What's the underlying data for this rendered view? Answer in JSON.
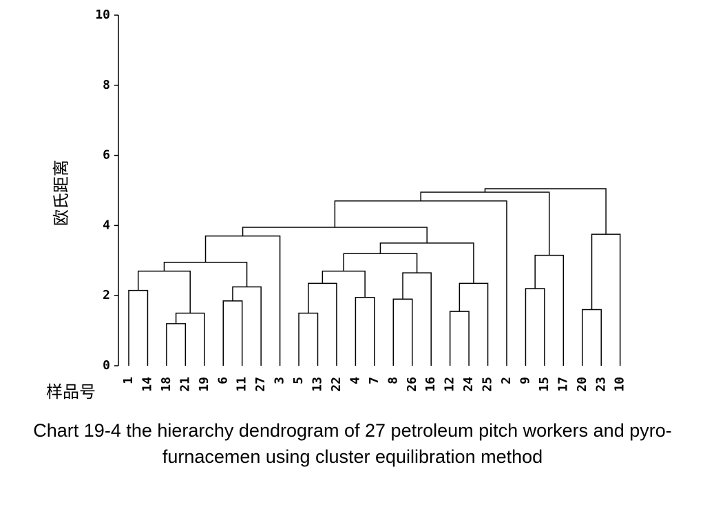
{
  "chart_data": {
    "type": "dendrogram",
    "ylabel": "欧氏距离",
    "xlabel": "样品号",
    "ylim": [
      0,
      10
    ],
    "yticks": [
      0,
      2,
      4,
      6,
      8,
      10
    ],
    "leaves": [
      "1",
      "14",
      "18",
      "21",
      "19",
      "6",
      "11",
      "27",
      "3",
      "5",
      "13",
      "22",
      "4",
      "7",
      "8",
      "26",
      "16",
      "12",
      "24",
      "25",
      "2",
      "9",
      "15",
      "17",
      "20",
      "23",
      "10"
    ],
    "merges": [
      {
        "id": "m_18_21",
        "children": [
          "18",
          "21"
        ],
        "height": 1.2
      },
      {
        "id": "m_18_21_19",
        "children": [
          "m_18_21",
          "19"
        ],
        "height": 1.5
      },
      {
        "id": "m_1_14",
        "children": [
          "1",
          "14"
        ],
        "height": 2.15
      },
      {
        "id": "m_1_19",
        "children": [
          "m_1_14",
          "m_18_21_19"
        ],
        "height": 2.7
      },
      {
        "id": "m_6_11",
        "children": [
          "6",
          "11"
        ],
        "height": 1.85
      },
      {
        "id": "m_6_27",
        "children": [
          "m_6_11",
          "27"
        ],
        "height": 2.25
      },
      {
        "id": "m_1_27",
        "children": [
          "m_1_19",
          "m_6_27"
        ],
        "height": 2.95
      },
      {
        "id": "m_1_3",
        "children": [
          "m_1_27",
          "3"
        ],
        "height": 3.7
      },
      {
        "id": "m_5_13",
        "children": [
          "5",
          "13"
        ],
        "height": 1.5
      },
      {
        "id": "m_5_22",
        "children": [
          "m_5_13",
          "22"
        ],
        "height": 2.35
      },
      {
        "id": "m_4_7",
        "children": [
          "4",
          "7"
        ],
        "height": 1.95
      },
      {
        "id": "m_5_7",
        "children": [
          "m_5_22",
          "m_4_7"
        ],
        "height": 2.7
      },
      {
        "id": "m_8_26",
        "children": [
          "8",
          "26"
        ],
        "height": 1.9
      },
      {
        "id": "m_8_16",
        "children": [
          "m_8_26",
          "16"
        ],
        "height": 2.65
      },
      {
        "id": "m_5_16",
        "children": [
          "m_5_7",
          "m_8_16"
        ],
        "height": 3.2
      },
      {
        "id": "m_12_24",
        "children": [
          "12",
          "24"
        ],
        "height": 1.55
      },
      {
        "id": "m_12_25",
        "children": [
          "m_12_24",
          "25"
        ],
        "height": 2.35
      },
      {
        "id": "m_5_25",
        "children": [
          "m_5_16",
          "m_12_25"
        ],
        "height": 3.5
      },
      {
        "id": "m_1_25",
        "children": [
          "m_1_3",
          "m_5_25"
        ],
        "height": 3.95
      },
      {
        "id": "m_1_2",
        "children": [
          "m_1_25",
          "2"
        ],
        "height": 4.7
      },
      {
        "id": "m_9_15",
        "children": [
          "9",
          "15"
        ],
        "height": 2.2
      },
      {
        "id": "m_9_17",
        "children": [
          "m_9_15",
          "17"
        ],
        "height": 3.15
      },
      {
        "id": "m_1_17",
        "children": [
          "m_1_2",
          "m_9_17"
        ],
        "height": 4.95
      },
      {
        "id": "m_20_23",
        "children": [
          "20",
          "23"
        ],
        "height": 1.6
      },
      {
        "id": "m_20_10",
        "children": [
          "m_20_23",
          "10"
        ],
        "height": 3.75
      },
      {
        "id": "m_all",
        "children": [
          "m_1_17",
          "m_20_10"
        ],
        "height": 5.05
      }
    ]
  },
  "caption": "Chart 19-4  the hierarchy dendrogram of 27 petroleum pitch workers and pyro-furnacemen using cluster equilibration method"
}
